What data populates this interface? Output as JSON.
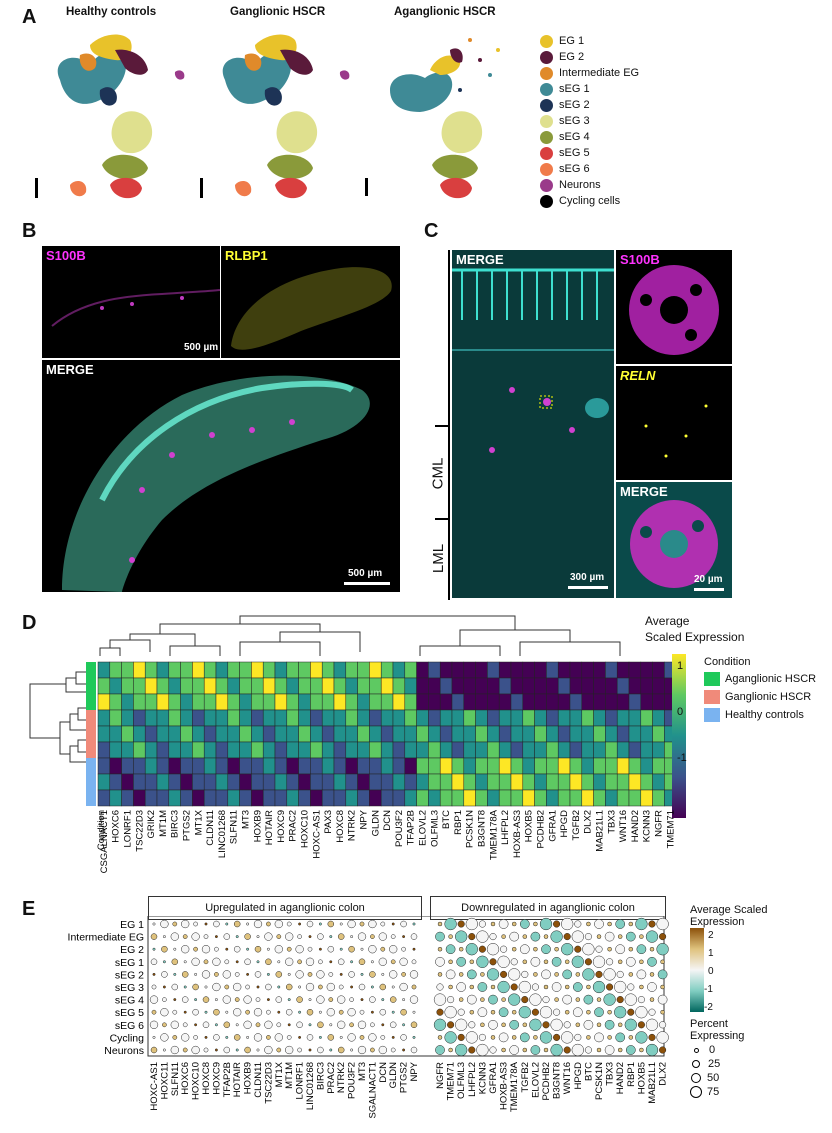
{
  "panels": {
    "a": "A",
    "b": "B",
    "c": "C",
    "d": "D",
    "e": "E"
  },
  "panel_a": {
    "titles": [
      "Healthy controls",
      "Ganglionic HSCR",
      "Aganglionic HSCR"
    ],
    "legend": [
      {
        "label": "EG 1",
        "color": "#e8c22a"
      },
      {
        "label": "EG 2",
        "color": "#5a1a3a"
      },
      {
        "label": "Intermediate EG",
        "color": "#e08a2a"
      },
      {
        "label": "sEG 1",
        "color": "#3f8a96"
      },
      {
        "label": "sEG 2",
        "color": "#1d3356"
      },
      {
        "label": "sEG 3",
        "color": "#dfe08e"
      },
      {
        "label": "sEG 4",
        "color": "#8a9a3a"
      },
      {
        "label": "sEG 5",
        "color": "#d93f3f"
      },
      {
        "label": "sEG 6",
        "color": "#f07b4a"
      },
      {
        "label": "Neurons",
        "color": "#9a3a8a"
      },
      {
        "label": "Cycling cells",
        "color": "#000000"
      }
    ]
  },
  "panel_b": {
    "s100b": "S100B",
    "rlbp1": "RLBP1",
    "merge": "MERGE",
    "scale_small": "500 µm",
    "scale_large": "500 µm"
  },
  "panel_c": {
    "merge": "MERGE",
    "s100b": "S100B",
    "reln": "RELN",
    "merge2": "MERGE",
    "cml": "CML",
    "lml": "LML",
    "scale_left": "300 µm",
    "scale_right": "20 µm"
  },
  "panel_d": {
    "legend_title_1": "Average",
    "legend_title_2": "Scaled Expression",
    "colorbar_ticks": [
      "1",
      "0",
      "-1"
    ],
    "condition_title": "Condition",
    "conditions": [
      {
        "label": "Aganglionic HSCR",
        "color": "#1fc95a"
      },
      {
        "label": "Ganglionic HSCR",
        "color": "#f08a7a"
      },
      {
        "label": "Healthy controls",
        "color": "#7ab3f0"
      }
    ],
    "row_label": "Condition",
    "genes": [
      "CSGALNACT1",
      "HOXC6",
      "LONRF1",
      "TSC22D3",
      "GRIK2",
      "MT1M",
      "BIRC3",
      "PTGS2",
      "MT1X",
      "CLDN11",
      "LINC01268",
      "SLFN11",
      "MT3",
      "HOXB9",
      "HOTAIR",
      "HOXC9",
      "PRAC2",
      "HOXC10",
      "HOXC-AS1",
      "PAX3",
      "HOXC8",
      "NTRK2",
      "NPY",
      "GLDN",
      "DCN",
      "POU3F2",
      "TFAP2B",
      "ELOVL2",
      "OLFML3",
      "BTC",
      "RBP1",
      "PCSK1N",
      "B3GNT8",
      "TMEM178A",
      "LHFPL2",
      "HOXB-AS3",
      "HOXB5",
      "PCDHB2",
      "GFRA1",
      "HPGD",
      "TGFB2",
      "DLX2",
      "MAB21L1",
      "TBX3",
      "WNT16",
      "HAND2",
      "KCNN3",
      "NGFR",
      "TMEM71"
    ]
  },
  "panel_e": {
    "up_title": "Upregulated in aganglionic colon",
    "down_title": "Downregulated in aganglionic colon",
    "legend_title_1": "Average Scaled",
    "legend_title_2": "Expression",
    "colorbar_ticks": [
      "2",
      "1",
      "0",
      "-1",
      "-2"
    ],
    "pct_title_1": "Percent",
    "pct_title_2": "Expressing",
    "pct_values": [
      "0",
      "25",
      "50",
      "75"
    ],
    "rows": [
      "EG 1",
      "Intermediate EG",
      "EG 2",
      "sEG 1",
      "sEG 2",
      "sEG 3",
      "sEG 4",
      "sEG 5",
      "sEG 6",
      "Cycling",
      "Neurons"
    ],
    "up_genes": [
      "HOXC-AS1",
      "HOXC11",
      "SLFN11",
      "HOXC6",
      "HOXC10",
      "HOXC8",
      "HOXC9",
      "TFAP2B",
      "HOTAIR",
      "HOXB9",
      "CLDN11",
      "TSC22D3",
      "MT1X",
      "MT1M",
      "LONRF1",
      "LINC01268",
      "BIRC3",
      "PRAC2",
      "NTRK2",
      "POU3F2",
      "MT3",
      "SGALNACT1",
      "DCN",
      "GLDN",
      "PTGS2",
      "NPY"
    ],
    "down_genes": [
      "NGFR",
      "TMEM71",
      "OLFML3",
      "LHFPL2",
      "KCNN3",
      "GFRA1",
      "HOXB-AS3",
      "TMEM178A",
      "TGFB2",
      "ELOVL2",
      "PCDHB2",
      "B3GNT8",
      "WNT16",
      "HPGD",
      "BTC",
      "PCSK1N",
      "TBX3",
      "HAND2",
      "RBP1",
      "HOXB5",
      "MAB21L1",
      "DLX2"
    ]
  }
}
